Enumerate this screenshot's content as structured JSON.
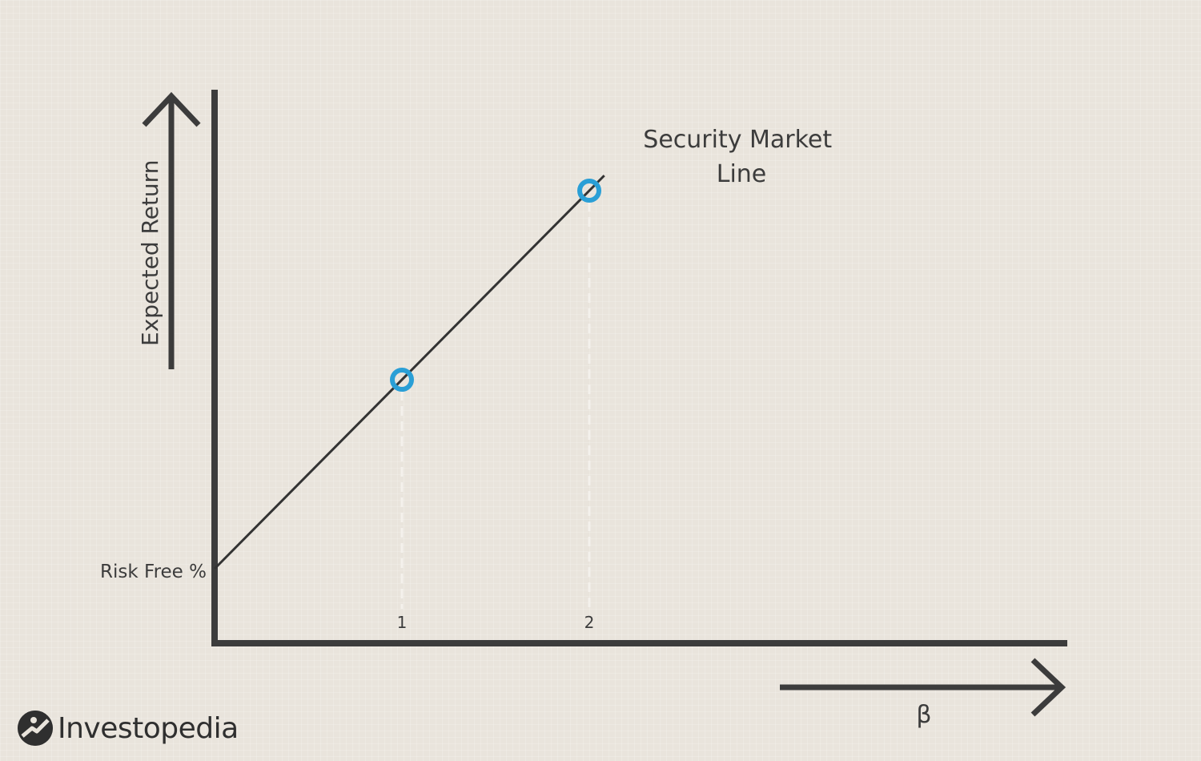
{
  "chart_data": {
    "type": "line",
    "xlabel": "β",
    "ylabel": "Expected Return",
    "x_ticks": [
      "1",
      "2"
    ],
    "y_ticks": [
      "Risk Free %"
    ],
    "series": [
      {
        "name": "Security Market Line",
        "label_lines": [
          "Security Market",
          "Line"
        ],
        "x": [
          0,
          1,
          2
        ],
        "y": [
          0,
          1,
          2
        ]
      }
    ],
    "highlighted_points": [
      {
        "x": 1,
        "y": 1
      },
      {
        "x": 2,
        "y": 2
      }
    ],
    "grid": false,
    "colors": {
      "background": "#e9e4dc",
      "axes": "#3c3c3c",
      "line": "#333333",
      "marker": "#2a9fd6",
      "guide": "#f4f1ec"
    }
  },
  "brand": {
    "name": "Investopedia"
  }
}
